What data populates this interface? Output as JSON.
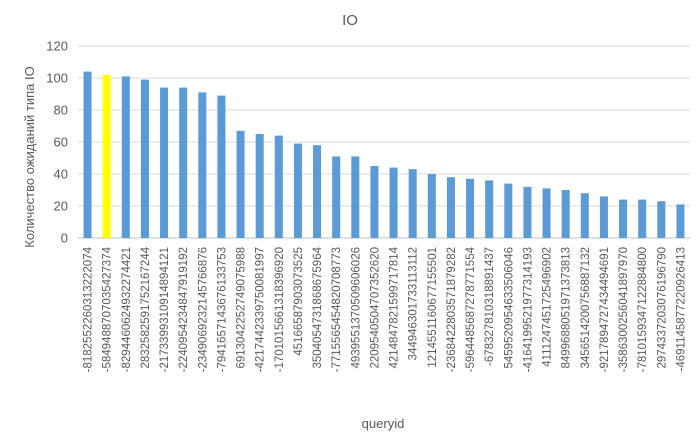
{
  "chart_data": {
    "type": "bar",
    "title": "IO",
    "xlabel": "queryid",
    "ylabel": "Количество ожиданий типа IO",
    "ylim": [
      0,
      120
    ],
    "yticks": [
      0,
      20,
      40,
      60,
      80,
      100,
      120
    ],
    "grid": true,
    "legend": "none",
    "colors": {
      "bar": "#5b9bd5",
      "highlight": "#ffff00",
      "text": "#595959",
      "grid": "#d9d9d9"
    },
    "highlight_index": 1,
    "categories": [
      "-8182552260313222074",
      "-5849488707035427374",
      "-8294460624932274421",
      "2832582591752167244",
      "-2173399310914894121",
      "-2240954234847919192",
      "-2349069232145766876",
      "-7941657143676133753",
      "6913042252749075988",
      "-4217442339750081997",
      "-1701015661318396920",
      "4516658790307352​5",
      "3504054731868675964",
      "-7715565454820708773",
      "4939551370509606026",
      "2209540504707352620",
      "4214847821599717814",
      "3449463017331131​12",
      "1214551160677155501",
      "-2368422803571879282",
      "-5964485687278771554",
      "-678327810318891437",
      "5459520954633506046",
      "-4164199521977314193",
      "4111247451725496902",
      "8499688051971373813",
      "3456514200756887132",
      "-9217894727434494691",
      "-3586300256041897970",
      "-7810159347122884800",
      "2974337203076196790",
      "-4691145877220926413"
    ],
    "values": [
      104,
      102,
      101,
      99,
      94,
      94,
      91,
      89,
      67,
      65,
      64,
      59,
      58,
      51,
      51,
      45,
      44,
      43,
      40,
      38,
      37,
      36,
      34,
      32,
      31,
      30,
      28,
      26,
      24,
      24,
      23,
      21
    ]
  }
}
